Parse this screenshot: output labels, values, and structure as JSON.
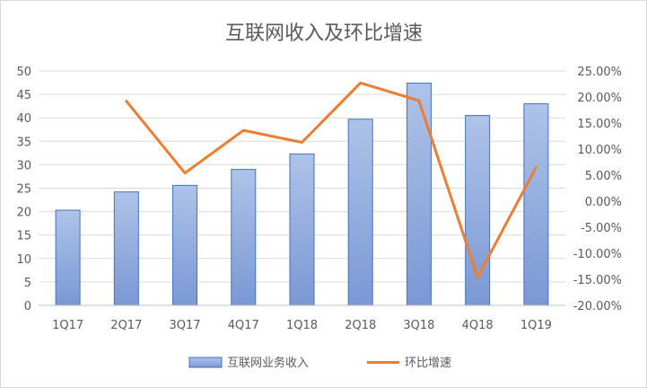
{
  "chart_data": {
    "type": "bar+line",
    "title": "互联网收入及环比增速",
    "categories": [
      "1Q17",
      "2Q17",
      "3Q17",
      "4Q17",
      "1Q18",
      "2Q18",
      "3Q18",
      "4Q18",
      "1Q19"
    ],
    "series": [
      {
        "name": "互联网业务收入",
        "type": "bar",
        "axis": "left",
        "values": [
          20.3,
          24.2,
          25.6,
          29.0,
          32.3,
          39.7,
          47.4,
          40.5,
          43.0
        ],
        "color": "#8faadc"
      },
      {
        "name": "环比增速",
        "type": "line",
        "axis": "right",
        "values": [
          null,
          19.2,
          5.4,
          13.6,
          11.3,
          22.7,
          19.3,
          -14.6,
          6.5
        ],
        "color": "#ed7d31"
      }
    ],
    "y_left": {
      "min": 0,
      "max": 50,
      "step": 5,
      "ticks": [
        "0",
        "5",
        "10",
        "15",
        "20",
        "25",
        "30",
        "35",
        "40",
        "45",
        "50"
      ]
    },
    "y_right": {
      "min": -20,
      "max": 25,
      "step": 5,
      "ticks": [
        "-20.00%",
        "-15.00%",
        "-10.00%",
        "-5.00%",
        "0.00%",
        "5.00%",
        "10.00%",
        "15.00%",
        "20.00%",
        "25.00%"
      ]
    },
    "grid": true,
    "legend_position": "bottom"
  }
}
